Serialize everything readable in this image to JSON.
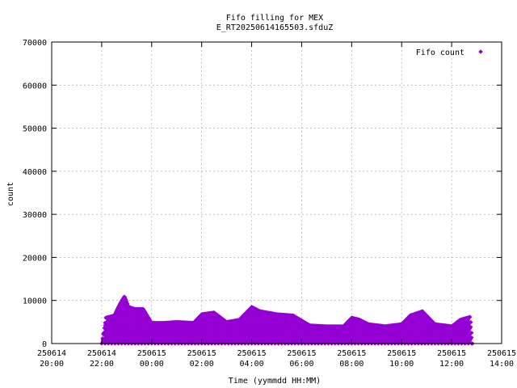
{
  "chart_data": {
    "type": "scatter",
    "title": "Fifo filling for MEX",
    "subtitle": "E_RT20250614165503.sfduZ",
    "xlabel": "Time (yymmdd HH:MM)",
    "ylabel": "count",
    "ylim": [
      0,
      70000
    ],
    "xlim_hours": [
      -4,
      14
    ],
    "grid": true,
    "legend_position": "top-right",
    "point_color": "#9400d3",
    "y_ticks": [
      "0",
      "10000",
      "20000",
      "30000",
      "40000",
      "50000",
      "60000",
      "70000"
    ],
    "x_ticks": [
      {
        "date": "250614",
        "time": "20:00"
      },
      {
        "date": "250614",
        "time": "22:00"
      },
      {
        "date": "250615",
        "time": "00:00"
      },
      {
        "date": "250615",
        "time": "02:00"
      },
      {
        "date": "250615",
        "time": "04:00"
      },
      {
        "date": "250615",
        "time": "06:00"
      },
      {
        "date": "250615",
        "time": "08:00"
      },
      {
        "date": "250615",
        "time": "10:00"
      },
      {
        "date": "250615",
        "time": "12:00"
      },
      {
        "date": "250615",
        "time": "14:00"
      }
    ],
    "series": [
      {
        "name": "Fifo count",
        "time_range": [
          "250614 22:00",
          "250615 12:50"
        ],
        "envelope": [
          {
            "t": "250614 22:00",
            "max": 0
          },
          {
            "t": "250614 22:10",
            "max": 6000
          },
          {
            "t": "250614 22:30",
            "max": 6500
          },
          {
            "t": "250614 22:45",
            "max": 9500
          },
          {
            "t": "250614 22:55",
            "max": 11000
          },
          {
            "t": "250614 23:05",
            "max": 8500
          },
          {
            "t": "250614 23:20",
            "max": 8000
          },
          {
            "t": "250614 23:40",
            "max": 8000
          },
          {
            "t": "250615 00:00",
            "max": 4800
          },
          {
            "t": "250615 00:30",
            "max": 4800
          },
          {
            "t": "250615 01:00",
            "max": 5000
          },
          {
            "t": "250615 01:40",
            "max": 4800
          },
          {
            "t": "250615 02:00",
            "max": 6800
          },
          {
            "t": "250615 02:30",
            "max": 7200
          },
          {
            "t": "250615 03:00",
            "max": 5000
          },
          {
            "t": "250615 03:30",
            "max": 5500
          },
          {
            "t": "250615 03:50",
            "max": 7500
          },
          {
            "t": "250615 04:00",
            "max": 8500
          },
          {
            "t": "250615 04:20",
            "max": 7500
          },
          {
            "t": "250615 05:00",
            "max": 6800
          },
          {
            "t": "250615 05:40",
            "max": 6500
          },
          {
            "t": "250615 06:20",
            "max": 4200
          },
          {
            "t": "250615 07:00",
            "max": 4000
          },
          {
            "t": "250615 07:40",
            "max": 4000
          },
          {
            "t": "250615 08:00",
            "max": 6000
          },
          {
            "t": "250615 08:20",
            "max": 5500
          },
          {
            "t": "250615 08:40",
            "max": 4500
          },
          {
            "t": "250615 09:20",
            "max": 4000
          },
          {
            "t": "250615 10:00",
            "max": 4500
          },
          {
            "t": "250615 10:20",
            "max": 6500
          },
          {
            "t": "250615 10:50",
            "max": 7500
          },
          {
            "t": "250615 11:20",
            "max": 4500
          },
          {
            "t": "250615 12:00",
            "max": 4000
          },
          {
            "t": "250615 12:20",
            "max": 5500
          },
          {
            "t": "250615 12:45",
            "max": 6200
          },
          {
            "t": "250615 12:50",
            "max": 0
          }
        ]
      }
    ]
  }
}
